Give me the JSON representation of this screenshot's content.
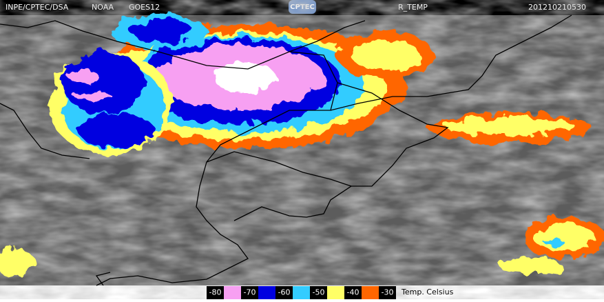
{
  "header": {
    "source": "INPE/CPTEC/DSA",
    "agency": "NOAA",
    "satellite": "GOES12",
    "logo": "CPTEC",
    "product": "R_TEMP",
    "timestamp": "201210210530"
  },
  "scale": {
    "labels": [
      -80,
      -70,
      -60,
      -50,
      -40,
      -30
    ],
    "colors": [
      "#f7a0f2",
      "#0000e0",
      "#33ccff",
      "#ffff66",
      "#ff6600"
    ],
    "unit": "Temp. Celsius"
  }
}
